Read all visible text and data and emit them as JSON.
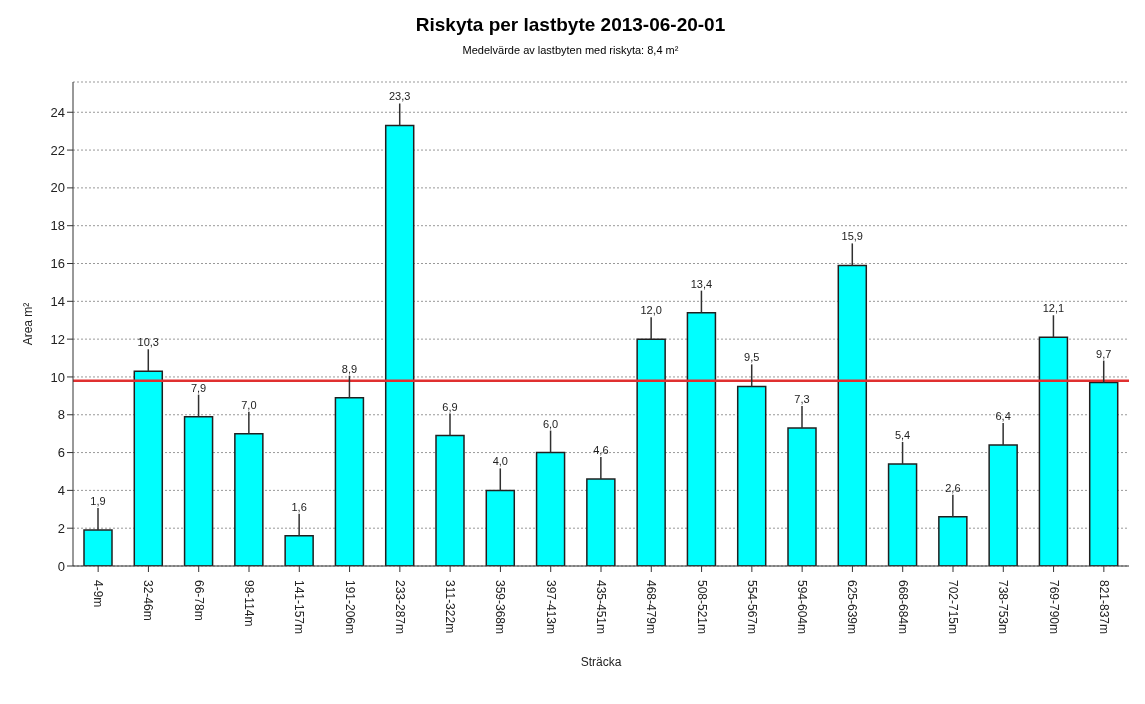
{
  "chart_data": {
    "type": "bar",
    "title": "Riskyta per lastbyte 2013-06-20-01",
    "subtitle": "Medelvärde av lastbyten med riskyta: 8,4 m²",
    "xlabel": "Sträcka",
    "ylabel": "Area m²",
    "categories": [
      "4-9m",
      "32-46m",
      "66-78m",
      "98-114m",
      "141-157m",
      "191-206m",
      "233-287m",
      "311-322m",
      "359-368m",
      "397-413m",
      "435-451m",
      "468-479m",
      "508-521m",
      "554-567m",
      "594-604m",
      "625-639m",
      "668-684m",
      "702-715m",
      "738-753m",
      "769-790m",
      "821-837m"
    ],
    "values": [
      1.9,
      10.3,
      7.9,
      7.0,
      1.6,
      8.9,
      23.3,
      6.9,
      4.0,
      6.0,
      4.6,
      12.0,
      13.4,
      9.5,
      7.3,
      15.9,
      5.4,
      2.6,
      6.4,
      12.1,
      9.7
    ],
    "value_labels": [
      "1,9",
      "10,3",
      "7,9",
      "7,0",
      "1,6",
      "8,9",
      "23,3",
      "6,9",
      "4,0",
      "6,0",
      "4,6",
      "12,0",
      "13,4",
      "9,5",
      "7,3",
      "15,9",
      "5,4",
      "2,6",
      "6,4",
      "12,1",
      "9,7"
    ],
    "color": "#00ffff",
    "ylim": [
      0,
      25.6
    ],
    "yticks": [
      0,
      2,
      4,
      6,
      8,
      10,
      12,
      14,
      16,
      18,
      20,
      22,
      24
    ],
    "grid": "y",
    "ref_lines": [
      {
        "axis": "y",
        "value": 9.8,
        "color": "#e03030"
      }
    ]
  }
}
